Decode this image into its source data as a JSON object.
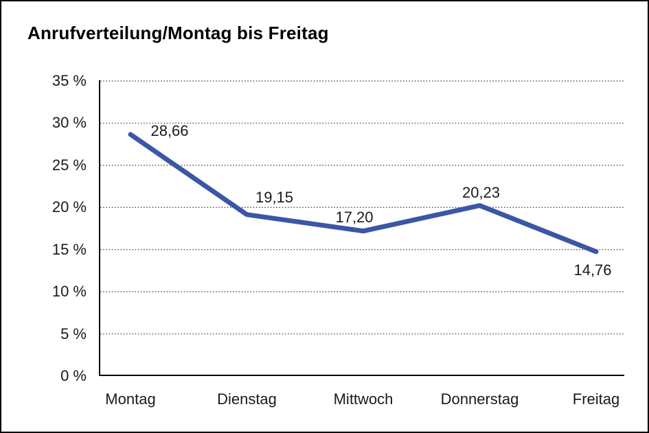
{
  "chart_data": {
    "type": "line",
    "title": "Anrufverteilung/Montag bis Freitag",
    "categories": [
      "Montag",
      "Dienstag",
      "Mittwoch",
      "Donnerstag",
      "Freitag"
    ],
    "values": [
      28.66,
      19.15,
      17.2,
      20.23,
      14.76
    ],
    "data_labels": [
      "28,66",
      "19,15",
      "17,20",
      "20,23",
      "14,76"
    ],
    "ylim": [
      0,
      35
    ],
    "ytick_step": 5,
    "ytick_labels_top_to_bottom": [
      "35 %",
      "30 %",
      "25 %",
      "20 %",
      "15 %",
      "10 %",
      "5 %",
      "0 %"
    ],
    "xlabel": "",
    "ylabel": "",
    "legend": "none",
    "grid": "horizontal-dotted",
    "line_color": "#3A57A5",
    "axis_color": "#000000",
    "gridline_color": "#3a3a3a",
    "text_color": "#1A1A1A",
    "background": "#FFFFFF",
    "border_color": "#000000"
  }
}
